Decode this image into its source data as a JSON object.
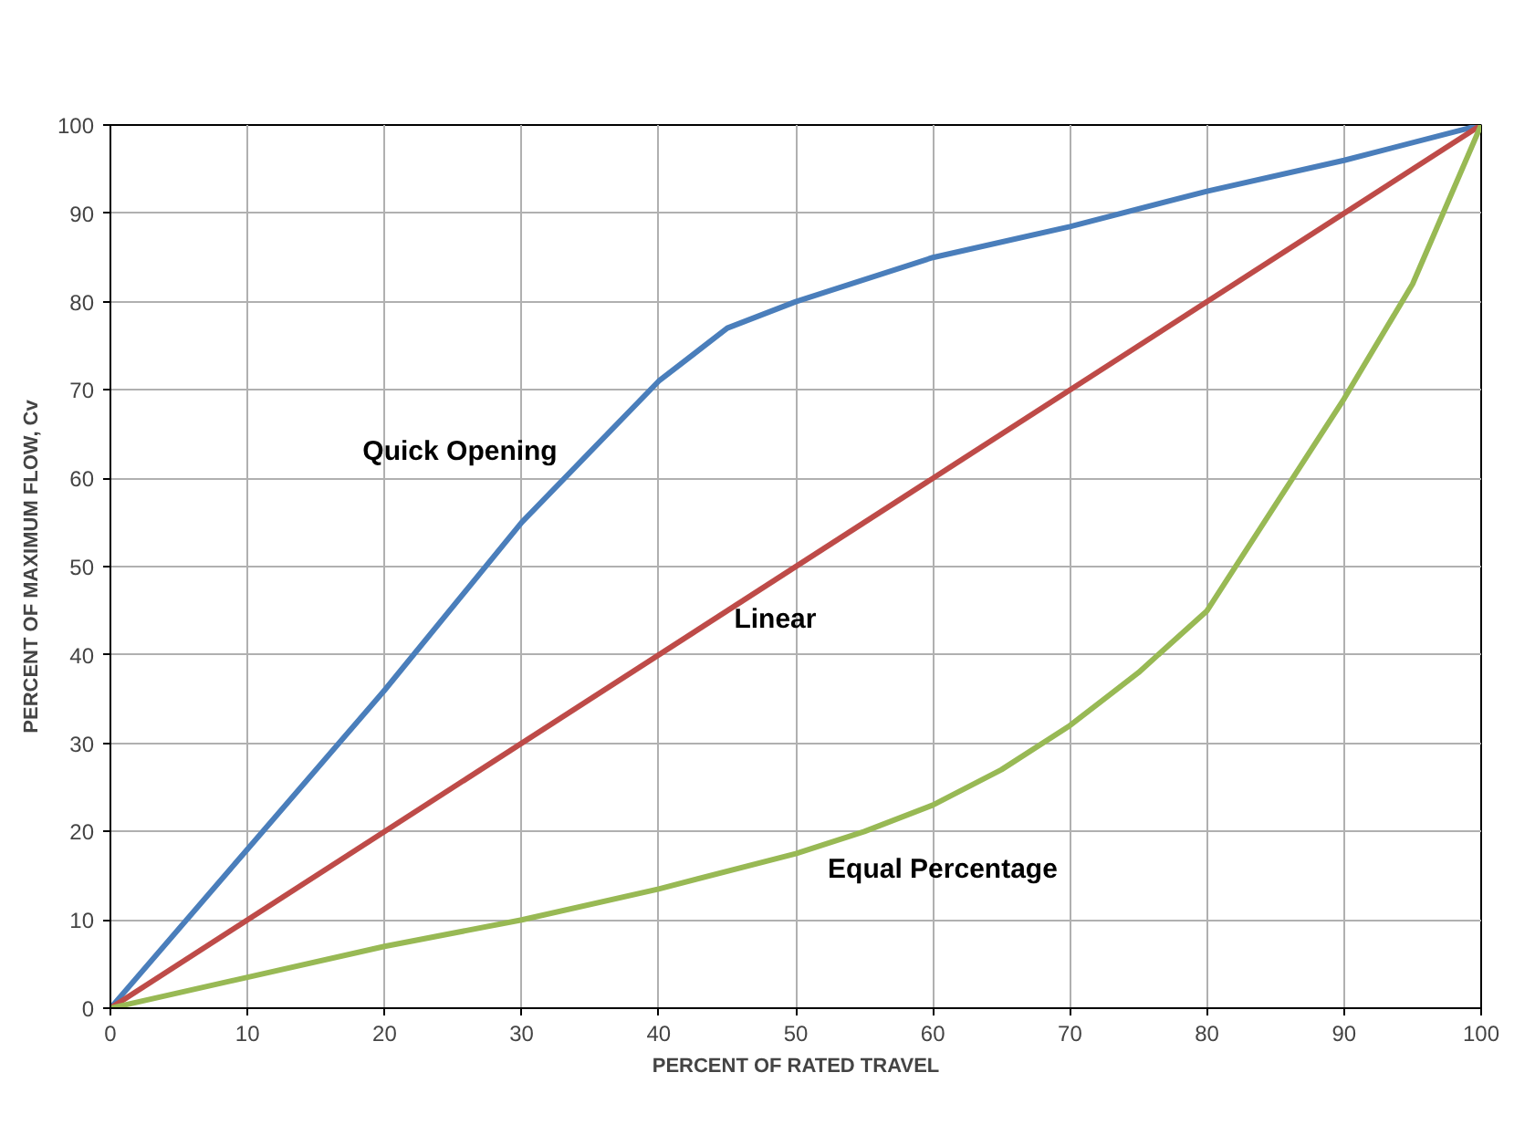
{
  "chart_data": {
    "type": "line",
    "xlabel": "PERCENT OF RATED TRAVEL",
    "ylabel": "PERCENT OF MAXIMUM FLOW, Cv",
    "xlim": [
      0,
      100
    ],
    "ylim": [
      0,
      100
    ],
    "xticks": [
      0,
      10,
      20,
      30,
      40,
      50,
      60,
      70,
      80,
      90,
      100
    ],
    "yticks": [
      0,
      10,
      20,
      30,
      40,
      50,
      60,
      70,
      80,
      90,
      100
    ],
    "grid": true,
    "marker": "none",
    "line_style": "solid",
    "series": [
      {
        "color": "#4a7ebb",
        "x": [
          0,
          10,
          20,
          30,
          35,
          40,
          45,
          50,
          60,
          70,
          80,
          90,
          100
        ],
        "values": [
          0,
          18,
          36,
          55,
          63,
          71,
          77,
          80,
          85,
          88.5,
          92.5,
          96,
          100
        ]
      },
      {
        "color": "#be4b48",
        "x": [
          0,
          100
        ],
        "values": [
          0,
          100
        ]
      },
      {
        "color": "#98b954",
        "x": [
          0,
          10,
          20,
          30,
          40,
          50,
          55,
          60,
          65,
          70,
          75,
          80,
          85,
          90,
          95,
          100
        ],
        "values": [
          0,
          3.5,
          7,
          10,
          13.5,
          17.5,
          20,
          23,
          27,
          32,
          38,
          45,
          57,
          69,
          82,
          100
        ]
      }
    ],
    "annotations": [
      {
        "text": "Quick Opening",
        "x": 35,
        "y": 63
      },
      {
        "text": "Linear",
        "x": 45.5,
        "y": 44
      },
      {
        "text": "Equal Percentage",
        "x": 55,
        "y": 20
      }
    ]
  }
}
